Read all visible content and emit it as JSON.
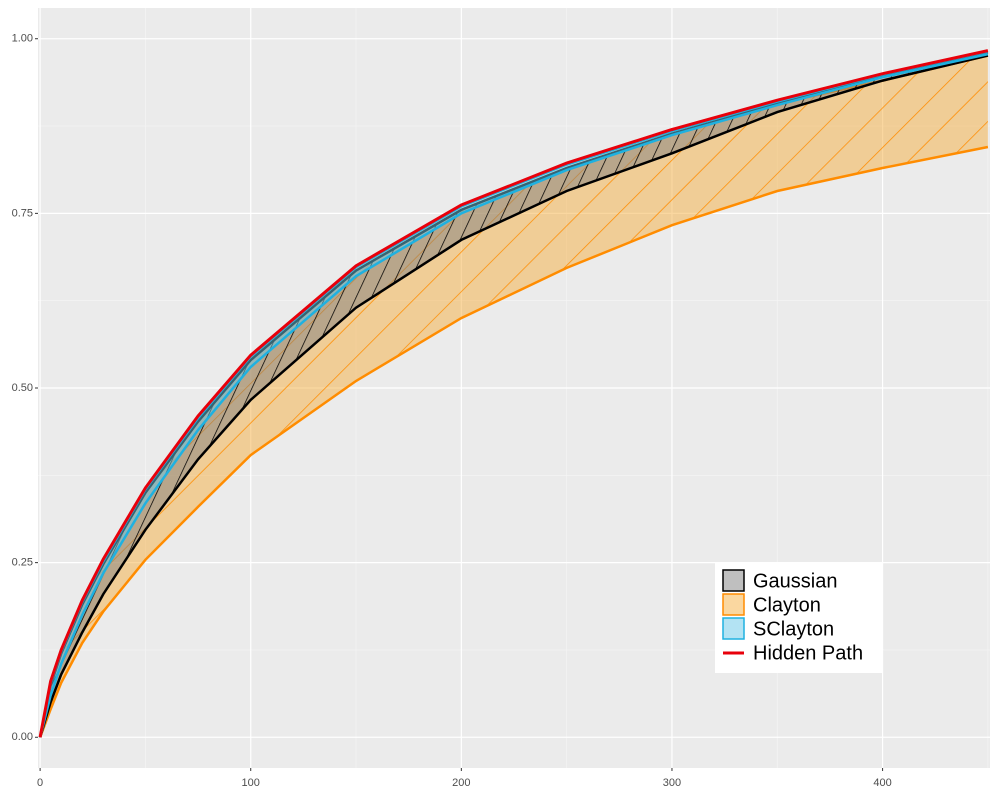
{
  "chart_data": {
    "type": "ribbon",
    "x": [
      0,
      5,
      10,
      20,
      30,
      50,
      75,
      100,
      150,
      200,
      250,
      300,
      350,
      400,
      450
    ],
    "xlim": [
      -1,
      451
    ],
    "xticks": [
      0,
      100,
      200,
      300,
      400
    ],
    "ylim": [
      -0.044,
      1.044
    ],
    "yticks": [
      {
        "value": 0,
        "label": "0.00"
      },
      0.25,
      {
        "value": 0.5,
        "label": "0.50"
      },
      0.75,
      {
        "value": 1,
        "label": "1.00"
      }
    ],
    "grid": true,
    "legend": "bottom-right",
    "series": [
      {
        "name": "Clayton",
        "color": "#ff8c00",
        "fill": "#f5b041",
        "lower": [
          0,
          0.04,
          0.078,
          0.135,
          0.18,
          0.254,
          0.33,
          0.404,
          0.51,
          0.6,
          0.672,
          0.733,
          0.782,
          0.815,
          0.845
        ],
        "upper": [
          0,
          0.075,
          0.12,
          0.19,
          0.248,
          0.35,
          0.452,
          0.54,
          0.668,
          0.755,
          0.815,
          0.864,
          0.907,
          0.94,
          0.976
        ]
      },
      {
        "name": "Gaussian",
        "color": "#000000",
        "fill": "#7f7f7f",
        "lower": [
          0,
          0.05,
          0.09,
          0.15,
          0.205,
          0.297,
          0.398,
          0.483,
          0.615,
          0.712,
          0.782,
          0.836,
          0.895,
          0.94,
          0.976
        ],
        "upper": [
          0,
          0.075,
          0.12,
          0.19,
          0.248,
          0.35,
          0.452,
          0.54,
          0.668,
          0.755,
          0.815,
          0.864,
          0.907,
          0.946,
          0.98
        ]
      },
      {
        "name": "SClayton",
        "color": "#1fb1e0",
        "fill": "#67c7e8",
        "lower": [
          0,
          0.06,
          0.105,
          0.175,
          0.235,
          0.335,
          0.44,
          0.53,
          0.66,
          0.75,
          0.812,
          0.862,
          0.905,
          0.945,
          0.978
        ],
        "upper": [
          0,
          0.078,
          0.123,
          0.194,
          0.252,
          0.355,
          0.457,
          0.545,
          0.673,
          0.76,
          0.82,
          0.868,
          0.91,
          0.949,
          0.982
        ]
      }
    ],
    "line": {
      "name": "Hidden Path",
      "color": "#e8000b",
      "values": [
        0,
        0.08,
        0.125,
        0.196,
        0.255,
        0.357,
        0.46,
        0.547,
        0.675,
        0.762,
        0.822,
        0.87,
        0.912,
        0.95,
        0.983
      ]
    }
  }
}
